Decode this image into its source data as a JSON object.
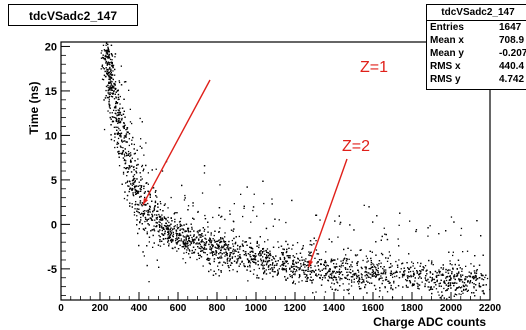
{
  "chart_data": {
    "type": "scatter",
    "title": "tdcVSadc2_147",
    "xlabel": "Charge ADC counts",
    "ylabel": "Time (ns)",
    "xlim": [
      0,
      2200
    ],
    "ylim": [
      -8.5,
      20.5
    ],
    "x_ticks": [
      0,
      200,
      400,
      600,
      800,
      1000,
      1200,
      1400,
      1600,
      1800,
      2000,
      2200
    ],
    "y_ticks": [
      -5,
      0,
      5,
      10,
      15,
      20
    ],
    "band_curve_x": [
      240,
      270,
      300,
      330,
      360,
      390,
      420,
      450,
      500,
      560,
      620,
      700,
      800,
      900,
      1000,
      1100,
      1200,
      1300,
      1400,
      1600,
      1800,
      2000,
      2150
    ],
    "band_curve_y": [
      17,
      14,
      11,
      8,
      5.5,
      3.5,
      2.0,
      1.0,
      0.0,
      -0.8,
      -1.4,
      -2.1,
      -2.8,
      -3.3,
      -3.8,
      -4.2,
      -4.6,
      -4.9,
      -5.2,
      -5.6,
      -5.9,
      -6.2,
      -6.4
    ],
    "annotations": [
      {
        "text": "Z=1",
        "x": 420,
        "y": 2.2
      },
      {
        "text": "Z=2",
        "x": 1270,
        "y": -4.8
      }
    ],
    "stats": {
      "header": "tdcVSadc2_147",
      "rows": [
        {
          "label": "Entries",
          "value": "1647"
        },
        {
          "label": "Mean x",
          "value": "708.9"
        },
        {
          "label": "Mean y",
          "value": "-0.207"
        },
        {
          "label": "RMS x",
          "value": "440.4"
        },
        {
          "label": "RMS y",
          "value": "4.742"
        }
      ]
    }
  }
}
